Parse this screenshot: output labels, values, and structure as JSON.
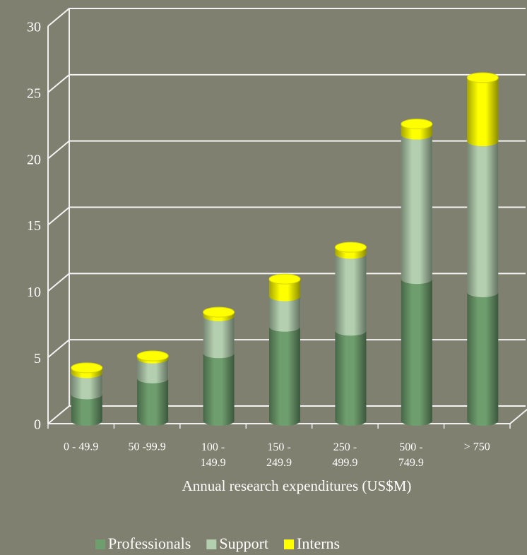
{
  "chart_data": {
    "type": "bar",
    "stacked": true,
    "x_label": "Annual research expenditures (US$M)",
    "categories": [
      "0 - 49.9",
      "50 -99.9",
      "100 -\n149.9",
      "150 -\n249.9",
      "250 -\n499.9",
      "500 -\n749.9",
      "> 750"
    ],
    "series": [
      {
        "name": "Professionals",
        "color": "#6e9e6e",
        "values": [
          2.0,
          3.2,
          5.1,
          7.1,
          6.8,
          10.7,
          9.7
        ]
      },
      {
        "name": "Support",
        "color": "#b4cfb0",
        "values": [
          1.6,
          1.5,
          2.8,
          2.3,
          5.8,
          10.9,
          11.4
        ]
      },
      {
        "name": "Interns",
        "color": "#ffff00",
        "values": [
          0.4,
          0.2,
          0.3,
          1.3,
          0.5,
          0.8,
          4.8
        ]
      }
    ],
    "ylim": [
      0,
      30
    ],
    "yticks": [
      0,
      5,
      10,
      15,
      20,
      25,
      30
    ],
    "grid": true,
    "legend": "bottom"
  }
}
